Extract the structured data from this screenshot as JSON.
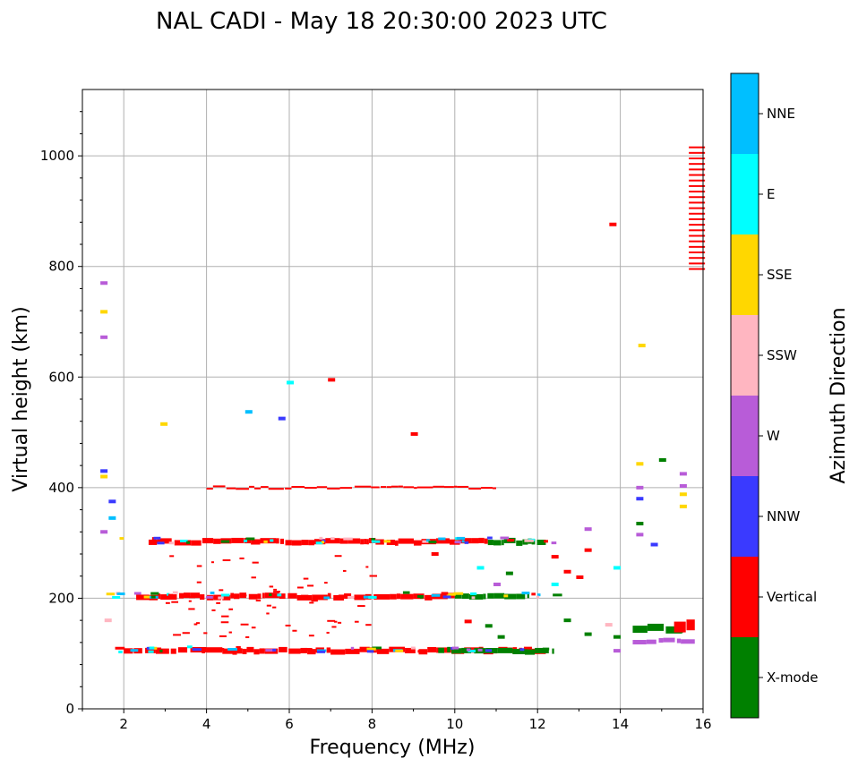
{
  "chart_data": {
    "type": "scatter",
    "title": "NAL CADI - May 18 20:30:00 2023 UTC",
    "xlabel": "Frequency (MHz)",
    "ylabel": "Virtual height (km)",
    "xlim": [
      1,
      16
    ],
    "ylim": [
      0,
      1120
    ],
    "xticks": [
      2,
      4,
      6,
      8,
      10,
      12,
      14,
      16
    ],
    "yticks": [
      0,
      200,
      400,
      600,
      800,
      1000
    ],
    "grid": true,
    "colorbar": {
      "label": "Azimuth Direction",
      "categories": [
        {
          "name": "X-mode",
          "color": "#008000"
        },
        {
          "name": "Vertical",
          "color": "#ff0000"
        },
        {
          "name": "NNW",
          "color": "#3a3aff"
        },
        {
          "name": "W",
          "color": "#b85cd8"
        },
        {
          "name": "SSW",
          "color": "#ffb6c1"
        },
        {
          "name": "SSE",
          "color": "#ffd700"
        },
        {
          "name": "E",
          "color": "#00ffff"
        },
        {
          "name": "NNE",
          "color": "#00bfff"
        }
      ]
    },
    "traces": [
      {
        "name": "E-layer trace",
        "category": "Vertical",
        "x": [
          2.0,
          12.2
        ],
        "y": 105,
        "width": 6
      },
      {
        "name": "E-layer X-mode",
        "category": "X-mode",
        "x": [
          9.6,
          12.4
        ],
        "y": 105,
        "width": 6
      },
      {
        "name": "F1 trace",
        "category": "Vertical",
        "x": [
          2.3,
          10.0
        ],
        "y": 203,
        "width": 6
      },
      {
        "name": "F1 X-mode",
        "category": "X-mode",
        "x": [
          10.0,
          11.8
        ],
        "y": 203,
        "width": 6
      },
      {
        "name": "F2 trace",
        "category": "Vertical",
        "x": [
          2.6,
          10.8
        ],
        "y": 302,
        "width": 6
      },
      {
        "name": "F2 X-mode",
        "category": "X-mode",
        "x": [
          10.8,
          12.2
        ],
        "y": 302,
        "width": 6
      },
      {
        "name": "multi-hop",
        "category": "Vertical",
        "x": [
          4.0,
          11.0
        ],
        "y": 400,
        "width": 2
      },
      {
        "name": "high-freq echo",
        "category": "X-mode",
        "x": [
          14.3,
          15.5
        ],
        "y": 145,
        "width": 8
      },
      {
        "name": "high-freq echo vertical",
        "category": "Vertical",
        "x": [
          15.3,
          15.8
        ],
        "y": 150,
        "width": 12
      },
      {
        "name": "oblique W",
        "category": "W",
        "x": [
          14.3,
          15.8
        ],
        "y": 122,
        "width": 5
      }
    ],
    "points": [
      {
        "x": 1.5,
        "y": 770,
        "category": "W"
      },
      {
        "x": 1.5,
        "y": 718,
        "category": "SSE"
      },
      {
        "x": 1.5,
        "y": 672,
        "category": "W"
      },
      {
        "x": 1.5,
        "y": 430,
        "category": "NNW"
      },
      {
        "x": 1.5,
        "y": 420,
        "category": "SSE"
      },
      {
        "x": 1.5,
        "y": 320,
        "category": "W"
      },
      {
        "x": 1.6,
        "y": 160,
        "category": "SSW"
      },
      {
        "x": 1.7,
        "y": 375,
        "category": "NNW"
      },
      {
        "x": 1.7,
        "y": 345,
        "category": "NNE"
      },
      {
        "x": 2.95,
        "y": 515,
        "category": "SSE"
      },
      {
        "x": 5.0,
        "y": 537,
        "category": "NNE"
      },
      {
        "x": 5.8,
        "y": 525,
        "category": "NNW"
      },
      {
        "x": 6.0,
        "y": 590,
        "category": "E"
      },
      {
        "x": 7.0,
        "y": 595,
        "category": "Vertical"
      },
      {
        "x": 9.0,
        "y": 497,
        "category": "Vertical"
      },
      {
        "x": 13.8,
        "y": 876,
        "category": "Vertical"
      },
      {
        "x": 14.5,
        "y": 657,
        "category": "SSE"
      },
      {
        "x": 14.45,
        "y": 443,
        "category": "SSE"
      },
      {
        "x": 14.45,
        "y": 400,
        "category": "W"
      },
      {
        "x": 14.45,
        "y": 380,
        "category": "NNW"
      },
      {
        "x": 14.45,
        "y": 335,
        "category": "X-mode"
      },
      {
        "x": 14.45,
        "y": 315,
        "category": "W"
      },
      {
        "x": 15.0,
        "y": 450,
        "category": "X-mode"
      },
      {
        "x": 15.5,
        "y": 425,
        "category": "W"
      },
      {
        "x": 15.5,
        "y": 388,
        "category": "SSE"
      },
      {
        "x": 15.5,
        "y": 366,
        "category": "SSE"
      },
      {
        "x": 15.5,
        "y": 403,
        "category": "W"
      },
      {
        "x": 14.8,
        "y": 297,
        "category": "NNW"
      },
      {
        "x": 13.9,
        "y": 255,
        "category": "E"
      },
      {
        "x": 13.2,
        "y": 325,
        "category": "W"
      },
      {
        "x": 13.2,
        "y": 287,
        "category": "Vertical"
      },
      {
        "x": 12.4,
        "y": 275,
        "category": "Vertical"
      },
      {
        "x": 12.4,
        "y": 225,
        "category": "E"
      },
      {
        "x": 12.7,
        "y": 248,
        "category": "Vertical"
      },
      {
        "x": 13.0,
        "y": 238,
        "category": "Vertical"
      },
      {
        "x": 12.7,
        "y": 160,
        "category": "X-mode"
      },
      {
        "x": 13.2,
        "y": 135,
        "category": "X-mode"
      },
      {
        "x": 13.7,
        "y": 152,
        "category": "SSW"
      },
      {
        "x": 13.9,
        "y": 130,
        "category": "X-mode"
      },
      {
        "x": 13.9,
        "y": 105,
        "category": "W"
      },
      {
        "x": 10.6,
        "y": 255,
        "category": "E"
      },
      {
        "x": 11.3,
        "y": 245,
        "category": "X-mode"
      },
      {
        "x": 11.0,
        "y": 225,
        "category": "W"
      },
      {
        "x": 10.8,
        "y": 150,
        "category": "X-mode"
      },
      {
        "x": 11.1,
        "y": 130,
        "category": "X-mode"
      },
      {
        "x": 10.3,
        "y": 158,
        "category": "Vertical"
      },
      {
        "x": 9.5,
        "y": 280,
        "category": "Vertical"
      }
    ],
    "vertical_column": {
      "category": "Vertical",
      "x": 15.7,
      "y_range": [
        797,
        1017
      ],
      "step": 10
    }
  }
}
